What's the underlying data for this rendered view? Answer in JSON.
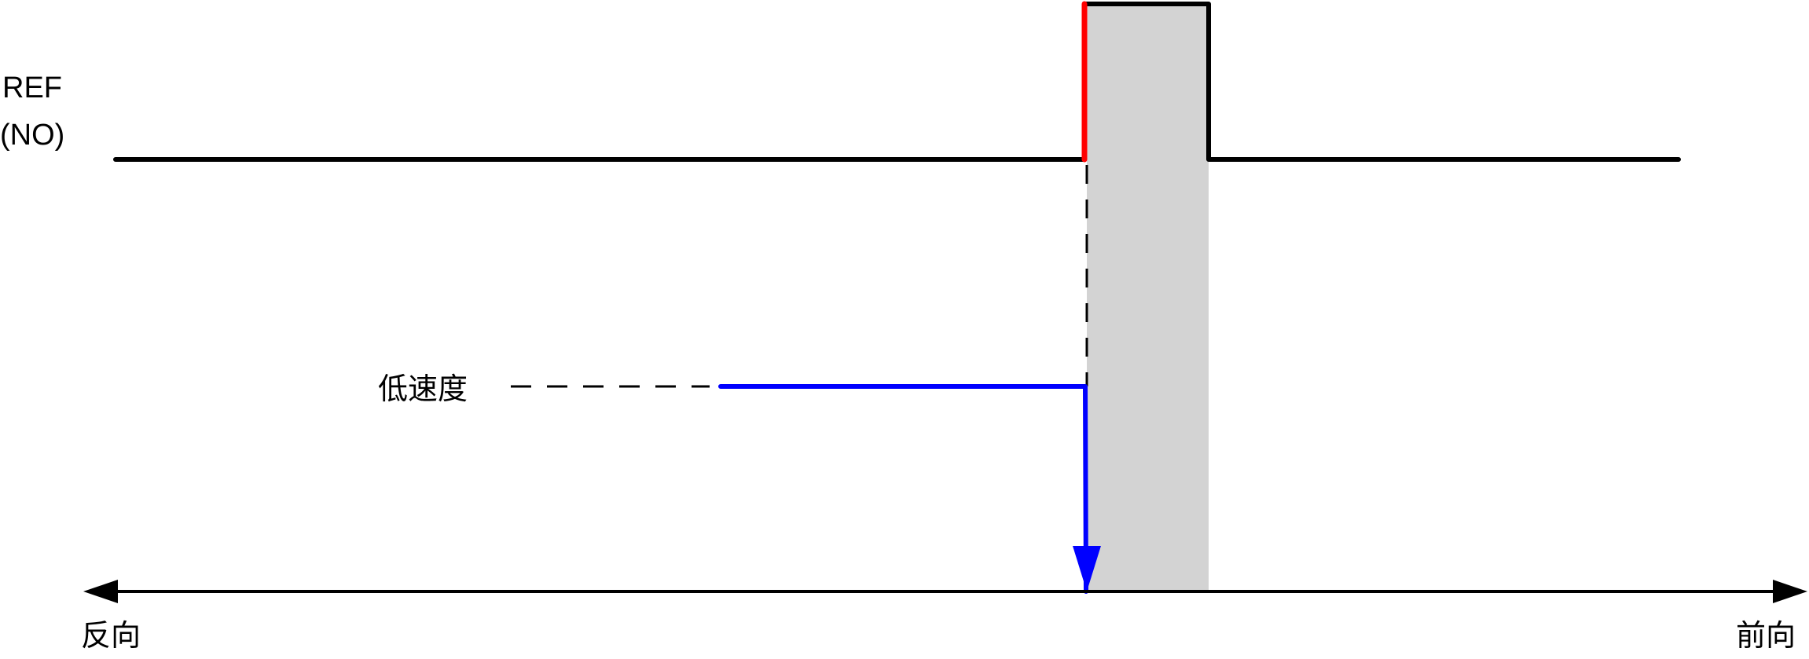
{
  "signal": {
    "line1": "REF",
    "line2": "(NO)"
  },
  "speed_label": "低速度",
  "axis": {
    "left_label": "反向",
    "right_label": "前向"
  },
  "colors": {
    "signal": "#000000",
    "rising_edge": "#ff0000",
    "speed": "#0000ff",
    "active_zone": "#d3d3d3"
  }
}
